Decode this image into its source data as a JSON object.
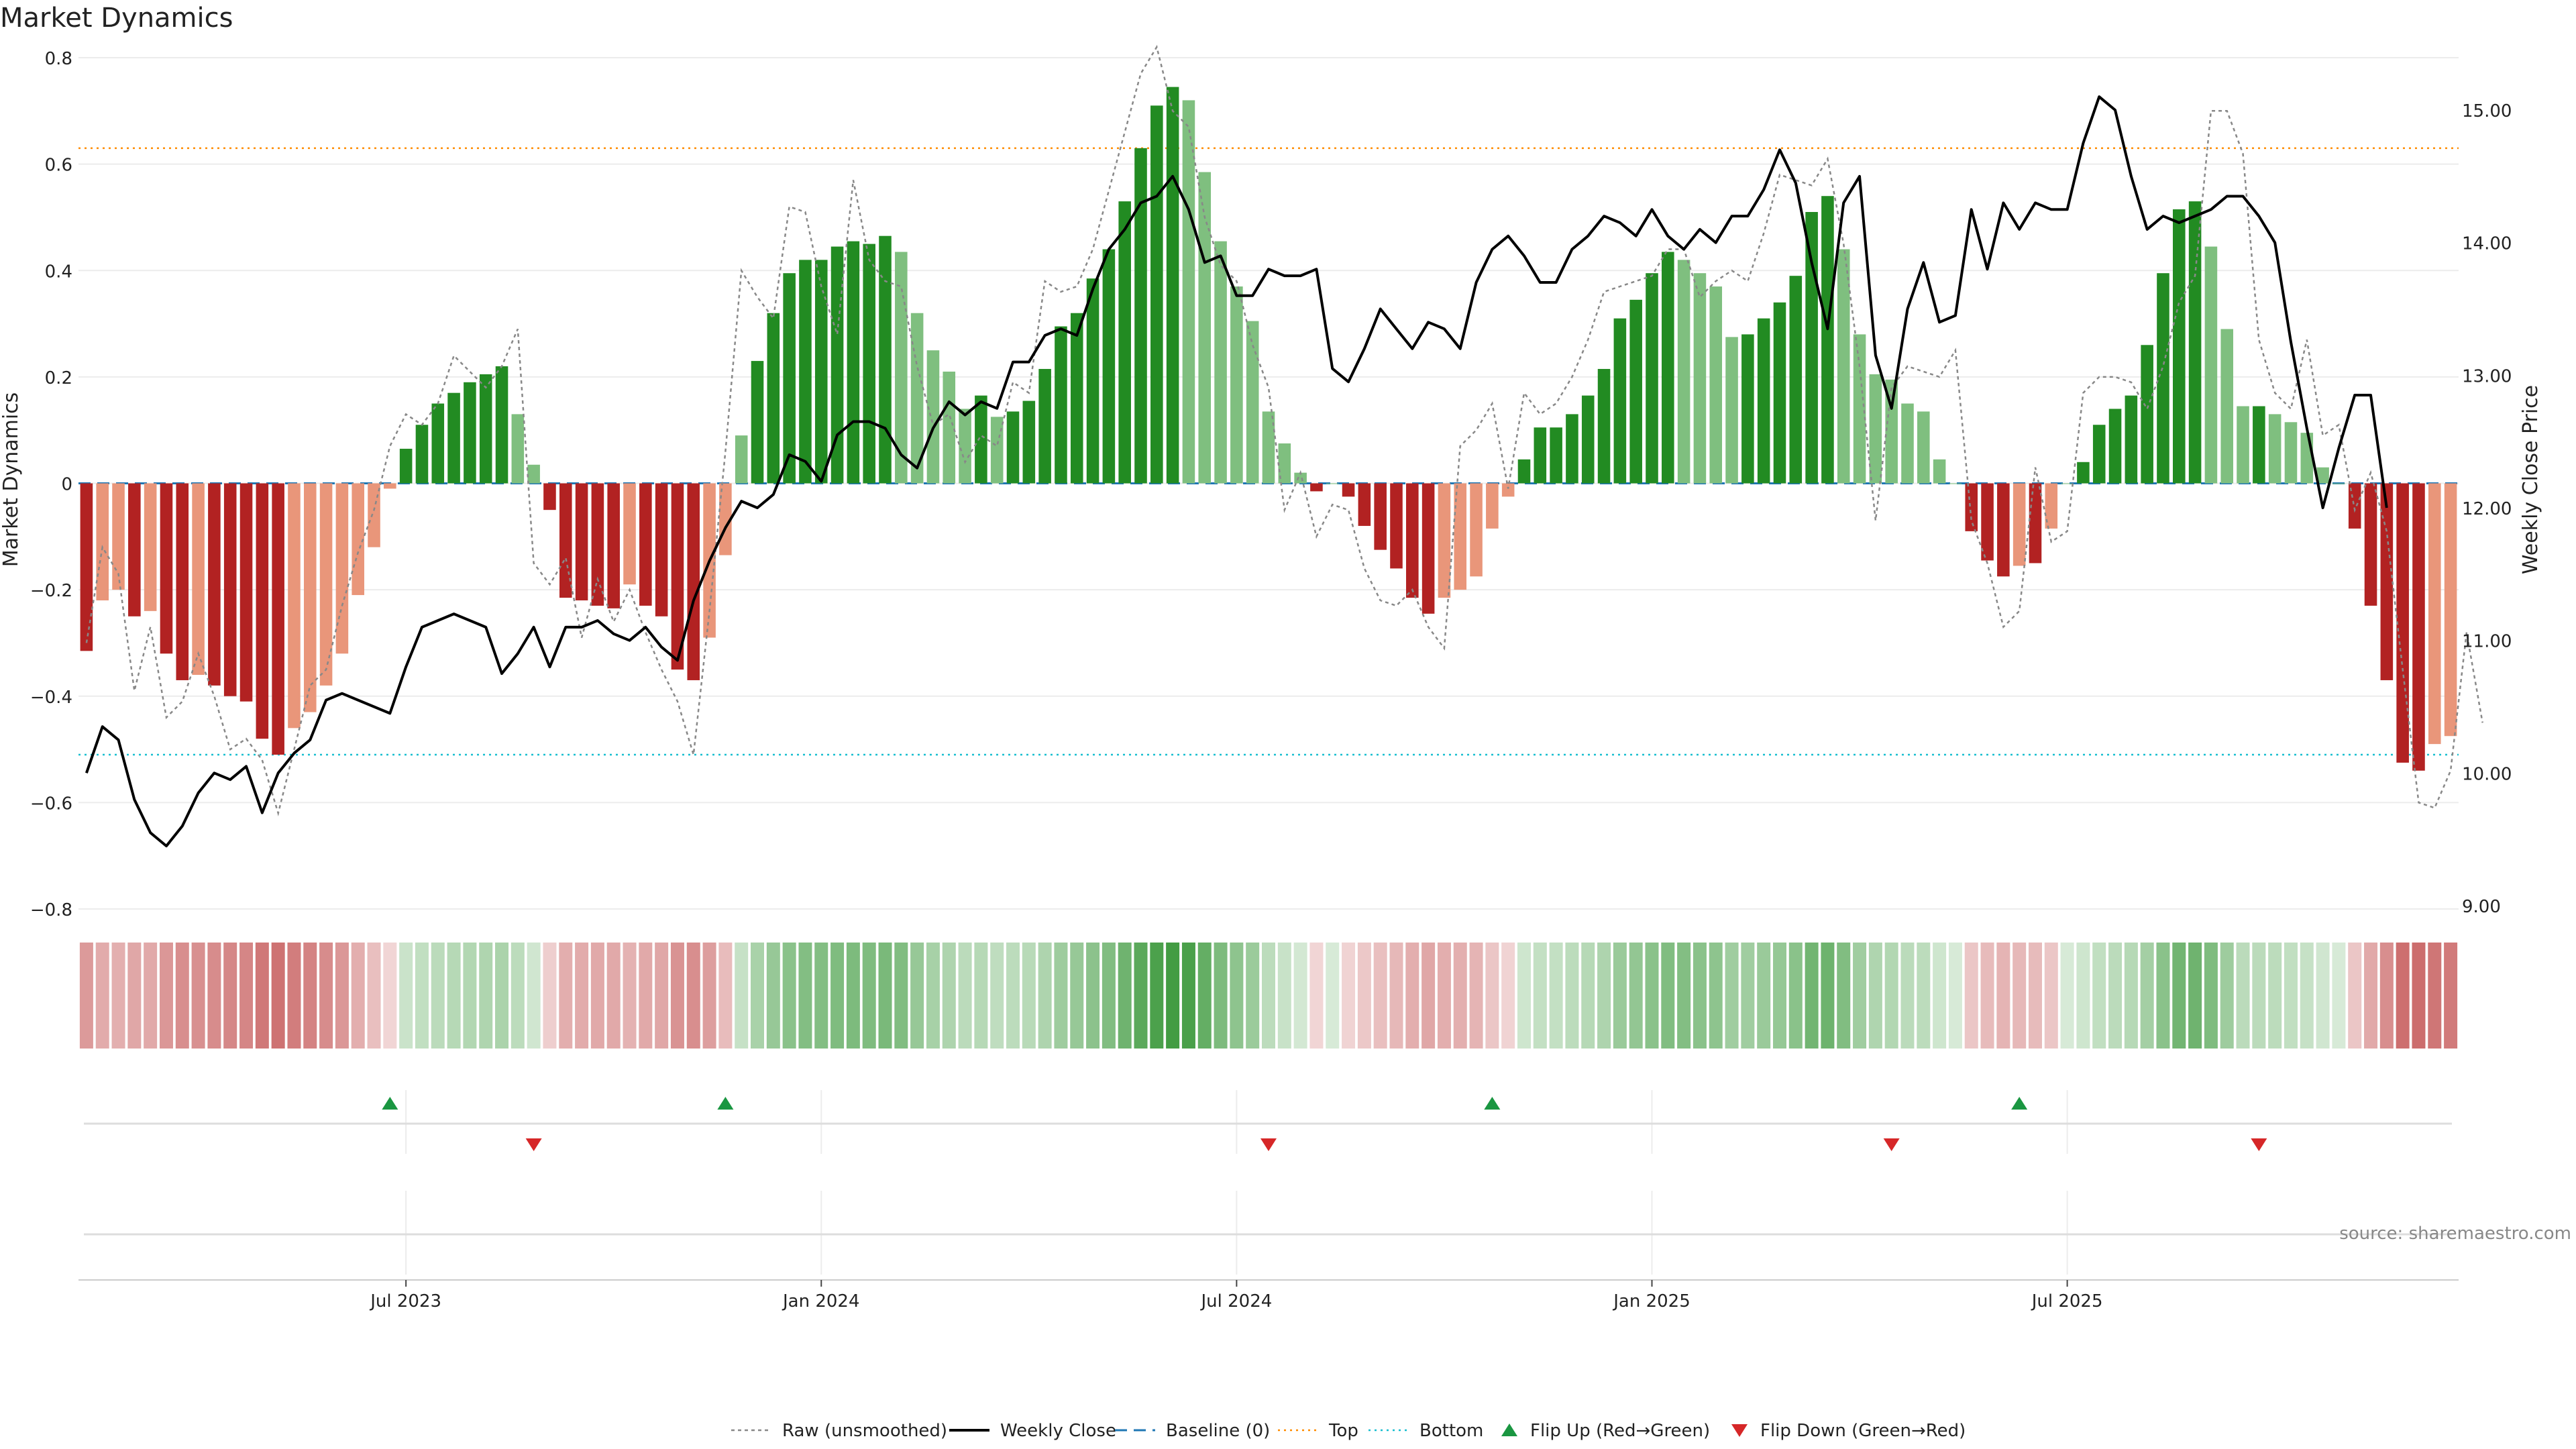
{
  "chart_data": {
    "type": "bar",
    "title": "Market Dynamics",
    "ylabel_left": "Market Dynamics",
    "ylabel_right": "Weekly Close Price",
    "left_ylim": [
      -0.8,
      0.8
    ],
    "left_ticks": [
      0.8,
      0.6,
      0.4,
      0.2,
      0,
      -0.2,
      -0.4,
      -0.6,
      -0.8
    ],
    "left_tick_labels": [
      "0.8",
      "0.6",
      "0.4",
      "0.2",
      "0",
      "−0.2",
      "−0.4",
      "−0.6",
      "−0.8"
    ],
    "right_ylim": [
      9.0,
      15.5
    ],
    "right_ticks": [
      15.0,
      14.0,
      13.0,
      12.0,
      11.0,
      10.0,
      9.0
    ],
    "right_tick_labels": [
      "15.00",
      "14.00",
      "13.00",
      "12.00",
      "11.00",
      "10.00",
      "9.00"
    ],
    "x_tick_labels": [
      "Jul 2023",
      "Jan 2024",
      "Jul 2024",
      "Jan 2025",
      "Jul 2025"
    ],
    "x_tick_positions": [
      20.5,
      46.5,
      72.5,
      98.5,
      124.5
    ],
    "top_threshold": 0.63,
    "bottom_threshold": -0.51,
    "baseline": 0,
    "values": [
      -0.315,
      -0.22,
      -0.2,
      -0.25,
      -0.24,
      -0.32,
      -0.37,
      -0.36,
      -0.38,
      -0.4,
      -0.41,
      -0.48,
      -0.51,
      -0.46,
      -0.43,
      -0.38,
      -0.32,
      -0.21,
      -0.12,
      -0.01,
      0.065,
      0.11,
      0.15,
      0.17,
      0.19,
      0.205,
      0.22,
      0.13,
      0.035,
      -0.05,
      -0.215,
      -0.22,
      -0.23,
      -0.235,
      -0.19,
      -0.23,
      -0.25,
      -0.35,
      -0.37,
      -0.29,
      -0.135,
      0.09,
      0.23,
      0.32,
      0.395,
      0.42,
      0.42,
      0.445,
      0.455,
      0.45,
      0.465,
      0.435,
      0.32,
      0.25,
      0.21,
      0.14,
      0.165,
      0.125,
      0.135,
      0.155,
      0.215,
      0.295,
      0.32,
      0.385,
      0.44,
      0.53,
      0.63,
      0.71,
      0.745,
      0.72,
      0.585,
      0.455,
      0.37,
      0.305,
      0.135,
      0.075,
      0.02,
      -0.015,
      0,
      -0.025,
      -0.08,
      -0.125,
      -0.16,
      -0.215,
      -0.245,
      -0.215,
      -0.2,
      -0.175,
      -0.085,
      -0.025,
      0.045,
      0.105,
      0.105,
      0.13,
      0.165,
      0.215,
      0.31,
      0.345,
      0.395,
      0.435,
      0.42,
      0.395,
      0.37,
      0.275,
      0.28,
      0.31,
      0.34,
      0.39,
      0.51,
      0.54,
      0.44,
      0.28,
      0.205,
      0.195,
      0.15,
      0.135,
      0.045,
      0,
      -0.09,
      -0.145,
      -0.175,
      -0.155,
      -0.15,
      -0.085,
      0,
      0.04,
      0.11,
      0.14,
      0.165,
      0.26,
      0.395,
      0.515,
      0.53,
      0.445,
      0.29,
      0.145,
      0.145,
      0.13,
      0.115,
      0.095,
      0.03,
      0,
      -0.085,
      -0.23,
      -0.37,
      -0.525,
      -0.54,
      -0.49,
      -0.475
    ],
    "raw": [
      -0.3,
      -0.12,
      -0.17,
      -0.39,
      -0.27,
      -0.44,
      -0.41,
      -0.32,
      -0.4,
      -0.5,
      -0.48,
      -0.52,
      -0.62,
      -0.5,
      -0.38,
      -0.35,
      -0.23,
      -0.13,
      -0.05,
      0.07,
      0.13,
      0.11,
      0.15,
      0.24,
      0.21,
      0.18,
      0.22,
      0.29,
      -0.15,
      -0.19,
      -0.14,
      -0.29,
      -0.18,
      -0.26,
      -0.2,
      -0.28,
      -0.35,
      -0.41,
      -0.51,
      -0.24,
      0.06,
      0.4,
      0.35,
      0.31,
      0.52,
      0.51,
      0.37,
      0.28,
      0.57,
      0.42,
      0.38,
      0.37,
      0.22,
      0.11,
      0.13,
      0.04,
      0.09,
      0.07,
      0.19,
      0.17,
      0.38,
      0.36,
      0.37,
      0.44,
      0.55,
      0.66,
      0.77,
      0.82,
      0.7,
      0.67,
      0.5,
      0.41,
      0.38,
      0.26,
      0.18,
      -0.05,
      0.02,
      -0.1,
      -0.04,
      -0.05,
      -0.16,
      -0.22,
      -0.23,
      -0.2,
      -0.27,
      -0.31,
      0.07,
      0.1,
      0.15,
      -0.01,
      0.17,
      0.13,
      0.15,
      0.2,
      0.27,
      0.36,
      0.37,
      0.38,
      0.39,
      0.44,
      0.44,
      0.35,
      0.38,
      0.4,
      0.38,
      0.47,
      0.58,
      0.57,
      0.56,
      0.61,
      0.45,
      0.22,
      -0.07,
      0.18,
      0.22,
      0.21,
      0.2,
      0.25,
      -0.07,
      -0.15,
      -0.27,
      -0.24,
      0.03,
      -0.11,
      -0.09,
      0.17,
      0.2,
      0.2,
      0.19,
      0.14,
      0.22,
      0.34,
      0.39,
      0.7,
      0.7,
      0.62,
      0.27,
      0.17,
      0.14,
      0.27,
      0.09,
      0.11,
      -0.05,
      0.02,
      -0.09,
      -0.35,
      -0.6,
      -0.61,
      -0.54,
      -0.28,
      -0.45
    ],
    "price": [
      10.0,
      10.35,
      10.25,
      9.8,
      9.55,
      9.45,
      9.6,
      9.85,
      10.0,
      9.95,
      10.05,
      9.7,
      10.0,
      10.15,
      10.25,
      10.55,
      10.6,
      10.55,
      10.5,
      10.45,
      10.8,
      11.1,
      11.15,
      11.2,
      11.15,
      11.1,
      10.75,
      10.9,
      11.1,
      10.8,
      11.1,
      11.1,
      11.15,
      11.05,
      11.0,
      11.1,
      10.95,
      10.85,
      11.3,
      11.6,
      11.85,
      12.05,
      12.0,
      12.1,
      12.4,
      12.35,
      12.2,
      12.55,
      12.65,
      12.65,
      12.6,
      12.4,
      12.3,
      12.6,
      12.8,
      12.7,
      12.8,
      12.75,
      13.1,
      13.1,
      13.3,
      13.35,
      13.3,
      13.65,
      13.95,
      14.1,
      14.3,
      14.35,
      14.5,
      14.25,
      13.85,
      13.9,
      13.6,
      13.6,
      13.8,
      13.75,
      13.75,
      13.8,
      13.05,
      12.95,
      13.2,
      13.5,
      13.35,
      13.2,
      13.4,
      13.35,
      13.2,
      13.7,
      13.95,
      14.05,
      13.9,
      13.7,
      13.7,
      13.95,
      14.05,
      14.2,
      14.15,
      14.05,
      14.25,
      14.05,
      13.95,
      14.1,
      14.0,
      14.2,
      14.2,
      14.4,
      14.7,
      14.45,
      13.85,
      13.35,
      14.3,
      14.5,
      13.15,
      12.75,
      13.5,
      13.85,
      13.4,
      13.45,
      14.25,
      13.8,
      14.3,
      14.1,
      14.3,
      14.25,
      14.25,
      14.75,
      15.1,
      15.0,
      14.5,
      14.1,
      14.2,
      14.15,
      14.2,
      14.25,
      14.35,
      14.35,
      14.2,
      14.0,
      13.25,
      12.6,
      12.0,
      12.45,
      12.85,
      12.85,
      12.0
    ],
    "flip_up_indices": [
      19,
      40,
      88,
      121
    ],
    "flip_down_indices": [
      28,
      74,
      113,
      136
    ],
    "colors": {
      "strong_green": "#228b22",
      "light_green": "#7fbf7f",
      "strong_red": "#b22222",
      "light_red": "#e9967a",
      "price_line": "#000000",
      "raw_line": "#888888",
      "baseline": "#1f77b4",
      "top": "#ff8c00",
      "bottom": "#17becf",
      "flip_up": "#1a9641",
      "flip_down": "#d62728"
    },
    "legend": {
      "placement": "bottom-center",
      "items": [
        {
          "label": "Raw (unsmoothed)",
          "style": "dotted-gray-line"
        },
        {
          "label": "Weekly Close",
          "style": "solid-black-line"
        },
        {
          "label": "Baseline (0)",
          "style": "dashed-blue-line"
        },
        {
          "label": "Top",
          "style": "dotted-orange-line"
        },
        {
          "label": "Bottom",
          "style": "dotted-cyan-line"
        },
        {
          "label": "Flip Up (Red→Green)",
          "style": "green-up-triangle"
        },
        {
          "label": "Flip Down (Green→Red)",
          "style": "red-down-triangle"
        }
      ]
    }
  },
  "source_note": "source: sharemaestro.com"
}
